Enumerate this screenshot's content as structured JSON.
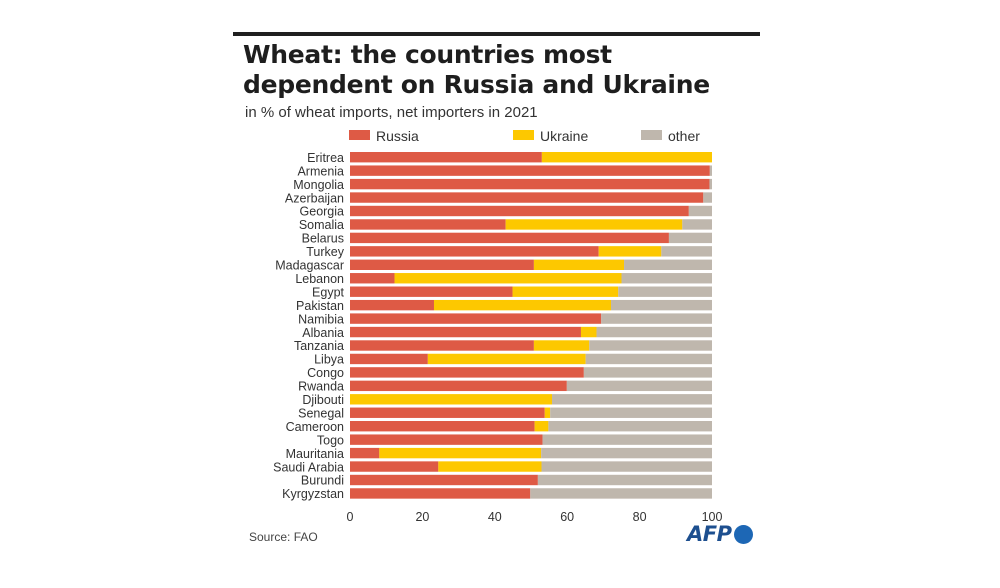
{
  "title": "Wheat: the countries most dependent on Russia and Ukraine",
  "subtitle": "in % of wheat imports, net importers in 2021",
  "source": "Source: FAO",
  "logo_text": "AFP",
  "colors": {
    "Russia": "#de5a45",
    "Ukraine": "#fdc800",
    "other": "#bfb7ad"
  },
  "chart_data": {
    "type": "bar",
    "orientation": "horizontal",
    "stacked": true,
    "categories": [
      "Eritrea",
      "Armenia",
      "Mongolia",
      "Azerbaijan",
      "Georgia",
      "Somalia",
      "Belarus",
      "Turkey",
      "Madagascar",
      "Lebanon",
      "Egypt",
      "Pakistan",
      "Namibia",
      "Albania",
      "Tanzania",
      "Libya",
      "Congo",
      "Rwanda",
      "Djibouti",
      "Senegal",
      "Cameroon",
      "Togo",
      "Mauritania",
      "Saudi Arabia",
      "Burundi",
      "Kyrgyzstan"
    ],
    "series": [
      {
        "name": "Russia",
        "values": [
          53.0,
          99.4,
          99.3,
          97.6,
          93.6,
          43.0,
          88.1,
          68.7,
          50.8,
          12.3,
          44.9,
          23.2,
          69.4,
          63.8,
          50.8,
          21.5,
          64.6,
          59.9,
          0.0,
          53.8,
          51.0,
          53.2,
          8.1,
          24.4,
          51.9,
          49.8
        ]
      },
      {
        "name": "Ukraine",
        "values": [
          47.0,
          0.0,
          0.0,
          0.0,
          0.0,
          48.8,
          0.0,
          17.3,
          24.9,
          62.7,
          29.2,
          48.9,
          0.0,
          4.3,
          15.3,
          43.6,
          0.0,
          0.0,
          55.8,
          1.5,
          3.8,
          0.0,
          44.7,
          28.5,
          0.0,
          0.0
        ]
      },
      {
        "name": "other",
        "values": [
          0.0,
          0.6,
          0.7,
          2.4,
          6.4,
          8.2,
          11.9,
          14.0,
          24.3,
          25.0,
          25.9,
          27.9,
          30.6,
          31.9,
          33.9,
          34.9,
          35.4,
          40.1,
          44.2,
          44.7,
          45.2,
          46.8,
          47.2,
          47.1,
          48.1,
          50.2
        ]
      }
    ],
    "xlim": [
      0,
      100
    ],
    "xticks": [
      0,
      20,
      40,
      60,
      80,
      100
    ],
    "legend": "top",
    "grid": false
  }
}
